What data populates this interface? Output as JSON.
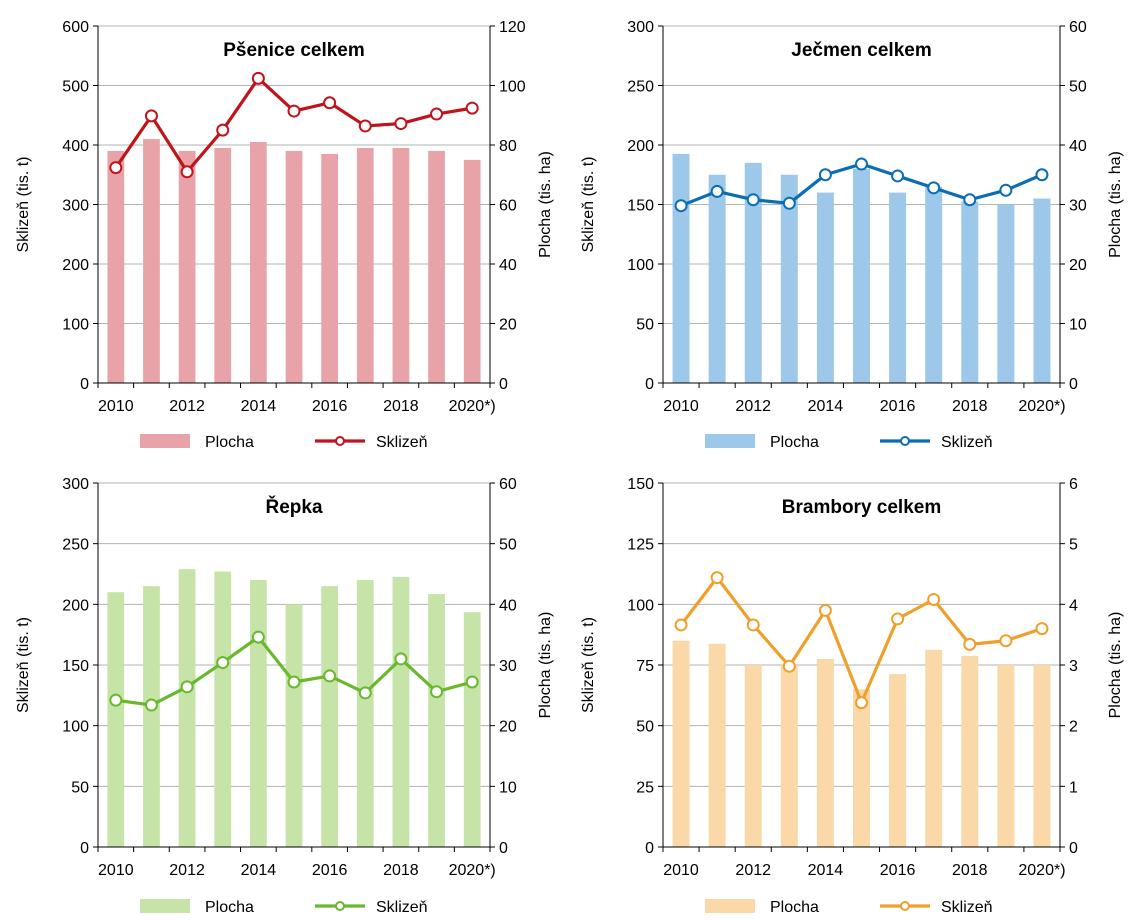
{
  "chart_data": [
    {
      "type": "bar+line",
      "title": "Pšenice celkem",
      "x_tick_labels": [
        "2010",
        "2012",
        "2014",
        "2016",
        "2018",
        "2020*)"
      ],
      "categories": [
        "2010",
        "2011",
        "2012",
        "2013",
        "2014",
        "2015",
        "2016",
        "2017",
        "2018",
        "2019",
        "2020*)"
      ],
      "ylabel_left": "Sklizeň (tis. t)",
      "ylabel_right": "Plocha (tis. ha)",
      "ylim_left": [
        0,
        600
      ],
      "ylim_right": [
        0,
        120
      ],
      "yticks_left": [
        "0",
        "100",
        "200",
        "300",
        "400",
        "500",
        "600"
      ],
      "yticks_right": [
        "0",
        "20",
        "40",
        "60",
        "80",
        "100",
        "120"
      ],
      "grid": true,
      "legend_position": "bottom",
      "series": [
        {
          "name": "Plocha",
          "type": "bar",
          "axis": "right",
          "color": "#e8a3a9",
          "values": [
            78,
            82,
            78,
            79,
            81,
            78,
            77,
            79,
            79,
            78,
            75
          ]
        },
        {
          "name": "Sklizeň",
          "type": "line",
          "axis": "left",
          "color": "#c0141b",
          "values": [
            362,
            449,
            355,
            425,
            512,
            457,
            471,
            432,
            436,
            452,
            462
          ]
        }
      ]
    },
    {
      "type": "bar+line",
      "title": "Ječmen celkem",
      "x_tick_labels": [
        "2010",
        "2012",
        "2014",
        "2016",
        "2018",
        "2020*)"
      ],
      "categories": [
        "2010",
        "2011",
        "2012",
        "2013",
        "2014",
        "2015",
        "2016",
        "2017",
        "2018",
        "2019",
        "2020*)"
      ],
      "ylabel_left": "Sklizeň (tis. t)",
      "ylabel_right": "Plocha (tis. ha)",
      "ylim_left": [
        0,
        300
      ],
      "ylim_right": [
        0,
        60
      ],
      "yticks_left": [
        "0",
        "50",
        "100",
        "150",
        "200",
        "250",
        "300"
      ],
      "yticks_right": [
        "0",
        "10",
        "20",
        "30",
        "40",
        "50",
        "60"
      ],
      "grid": true,
      "legend_position": "bottom",
      "series": [
        {
          "name": "Plocha",
          "type": "bar",
          "axis": "right",
          "color": "#9dc8ea",
          "values": [
            38.5,
            35,
            37,
            35,
            32,
            36,
            32,
            33,
            30.5,
            30,
            31
          ]
        },
        {
          "name": "Sklizeň",
          "type": "line",
          "axis": "left",
          "color": "#0a6eb4",
          "values": [
            149,
            161,
            154,
            151,
            175,
            184,
            174,
            164,
            154,
            162,
            175
          ]
        }
      ]
    },
    {
      "type": "bar+line",
      "title": "Řepka",
      "x_tick_labels": [
        "2010",
        "2012",
        "2014",
        "2016",
        "2018",
        "2020*)"
      ],
      "categories": [
        "2010",
        "2011",
        "2012",
        "2013",
        "2014",
        "2015",
        "2016",
        "2017",
        "2018",
        "2019",
        "2020*)"
      ],
      "ylabel_left": "Sklizeň (tis. t)",
      "ylabel_right": "Plocha (tis. ha)",
      "ylim_left": [
        0,
        300
      ],
      "ylim_right": [
        0,
        60
      ],
      "yticks_left": [
        "0",
        "50",
        "100",
        "150",
        "200",
        "250",
        "300"
      ],
      "yticks_right": [
        "0",
        "10",
        "20",
        "30",
        "40",
        "50",
        "60"
      ],
      "grid": true,
      "legend_position": "bottom",
      "series": [
        {
          "name": "Plocha",
          "type": "bar",
          "axis": "right",
          "color": "#c6e3a8",
          "values": [
            42,
            43,
            45.8,
            45.4,
            44,
            40,
            43,
            44,
            44.5,
            41.7,
            38.7
          ]
        },
        {
          "name": "Sklizeň",
          "type": "line",
          "axis": "left",
          "color": "#6ab82e",
          "values": [
            121,
            117,
            132,
            152,
            173,
            136,
            141,
            127,
            155,
            128,
            136
          ]
        }
      ]
    },
    {
      "type": "bar+line",
      "title": "Brambory celkem",
      "x_tick_labels": [
        "2010",
        "2012",
        "2014",
        "2016",
        "2018",
        "2020*)"
      ],
      "categories": [
        "2010",
        "2011",
        "2012",
        "2013",
        "2014",
        "2015",
        "2016",
        "2017",
        "2018",
        "2019",
        "2020*)"
      ],
      "ylabel_left": "Sklizeň (tis. t)",
      "ylabel_right": "Plocha (tis. ha)",
      "ylim_left": [
        0,
        150
      ],
      "ylim_right": [
        0,
        6
      ],
      "yticks_left": [
        "0",
        "25",
        "50",
        "75",
        "100",
        "125",
        "150"
      ],
      "yticks_right": [
        "0",
        "1",
        "2",
        "3",
        "4",
        "5",
        "6"
      ],
      "grid": true,
      "legend_position": "bottom",
      "series": [
        {
          "name": "Plocha",
          "type": "bar",
          "axis": "right",
          "color": "#fbd8a8",
          "values": [
            3.4,
            3.35,
            3.0,
            3.0,
            3.1,
            2.6,
            2.85,
            3.25,
            3.15,
            3.0,
            3.0
          ]
        },
        {
          "name": "Sklizeň",
          "type": "line",
          "axis": "left",
          "color": "#f0a02a",
          "values": [
            91.5,
            111,
            91.5,
            74.5,
            97.5,
            59.5,
            94,
            102,
            83.5,
            85,
            90
          ]
        }
      ]
    }
  ]
}
